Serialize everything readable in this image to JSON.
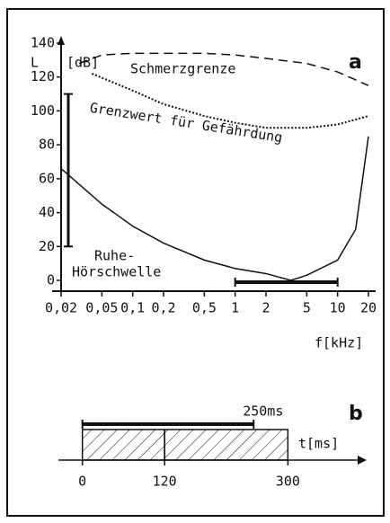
{
  "chart_data": [
    {
      "type": "line",
      "log_x": true,
      "y_label": "L",
      "y_unit": "[dB]",
      "x_label": "f[kHz]",
      "panel": "a",
      "xlim": [
        0.02,
        20
      ],
      "ylim": [
        0,
        140
      ],
      "xticks": [
        {
          "value": 0.02,
          "label": "0,02"
        },
        {
          "value": 0.05,
          "label": "0,05"
        },
        {
          "value": 0.1,
          "label": "0,1"
        },
        {
          "value": 0.2,
          "label": "0,2"
        },
        {
          "value": 0.5,
          "label": "0,5"
        },
        1,
        2,
        5,
        10,
        20
      ],
      "yticks": [
        0,
        20,
        40,
        60,
        80,
        100,
        120,
        140
      ],
      "series": [
        {
          "name": "Schmerzgrenze",
          "color": "#111",
          "style": "dashed",
          "x": [
            0.03,
            0.05,
            0.1,
            0.2,
            0.5,
            1,
            2,
            5,
            10,
            20
          ],
          "values": [
            128,
            133,
            134,
            134,
            134,
            133,
            131,
            128,
            123,
            115
          ]
        },
        {
          "name": "Grenzwert für Gefährdung",
          "color": "#111",
          "style": "dotted",
          "x": [
            0.04,
            0.1,
            0.2,
            0.5,
            1,
            2,
            5,
            10,
            20
          ],
          "values": [
            122,
            112,
            104,
            97,
            93,
            90,
            90,
            92,
            97
          ]
        },
        {
          "label_lines": [
            "Ruhe-",
            "Hörschwelle"
          ],
          "color": "#111",
          "style": "solid",
          "x": [
            0.02,
            0.05,
            0.1,
            0.2,
            0.5,
            1,
            2,
            3.5,
            5,
            10,
            15,
            20
          ],
          "values": [
            66,
            45,
            32,
            22,
            12,
            7,
            4,
            0,
            3,
            12,
            30,
            85
          ]
        }
      ],
      "level_range": [
        20,
        110
      ],
      "frequency_range": [
        1,
        10
      ]
    },
    {
      "type": "timeline",
      "x_label": "t[ms]",
      "panel": "b",
      "xlim": [
        -35,
        415
      ],
      "xticks": [
        0,
        120,
        300
      ],
      "segments": [
        [
          0,
          120
        ],
        [
          120,
          300
        ]
      ],
      "duration": 250,
      "duration_label": "250ms"
    }
  ]
}
